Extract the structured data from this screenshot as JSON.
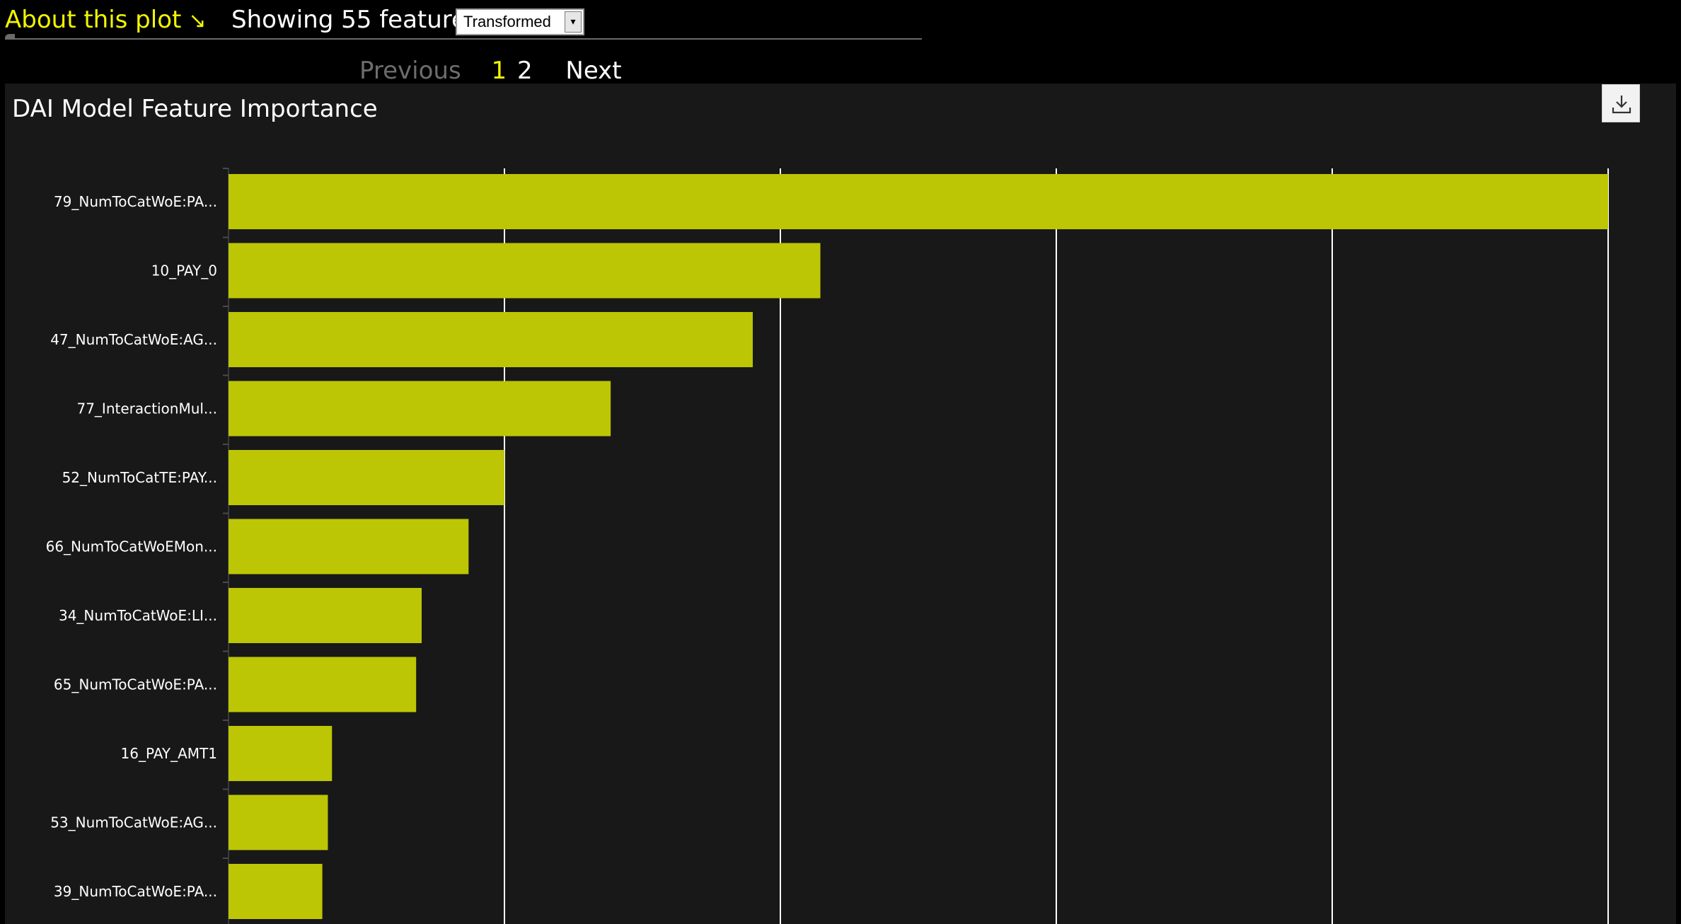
{
  "header": {
    "about_label": "About this plot",
    "about_arrow": "↘",
    "showing_label": "Showing 55 features:",
    "feature_select": {
      "value": "Transformed",
      "arrow": "▾"
    }
  },
  "pagination": {
    "previous_label": "Previous",
    "pages": [
      "1",
      "2"
    ],
    "current_page": "1",
    "next_label": "Next"
  },
  "panel": {
    "download_icon": "download-icon"
  },
  "colors": {
    "bar": "#bcc604",
    "accent": "#f1f600",
    "panel_bg": "#181818",
    "grid": "#ffffff"
  },
  "chart_data": {
    "type": "bar",
    "orientation": "horizontal",
    "title": "DAI Model Feature Importance",
    "xlabel": "",
    "ylabel": "",
    "xlim": [
      0,
      1
    ],
    "grid": true,
    "categories": [
      "79_NumToCatWoE:PA...",
      "10_PAY_0",
      "47_NumToCatWoE:AG...",
      "77_InteractionMul...",
      "52_NumToCatTE:PAY...",
      "66_NumToCatWoEMon...",
      "34_NumToCatWoE:LI...",
      "65_NumToCatWoE:PA...",
      "16_PAY_AMT1",
      "53_NumToCatWoE:AG...",
      "39_NumToCatWoE:PA..."
    ],
    "values": [
      1.0,
      0.429,
      0.38,
      0.277,
      0.2,
      0.174,
      0.14,
      0.136,
      0.075,
      0.072,
      0.068
    ]
  }
}
